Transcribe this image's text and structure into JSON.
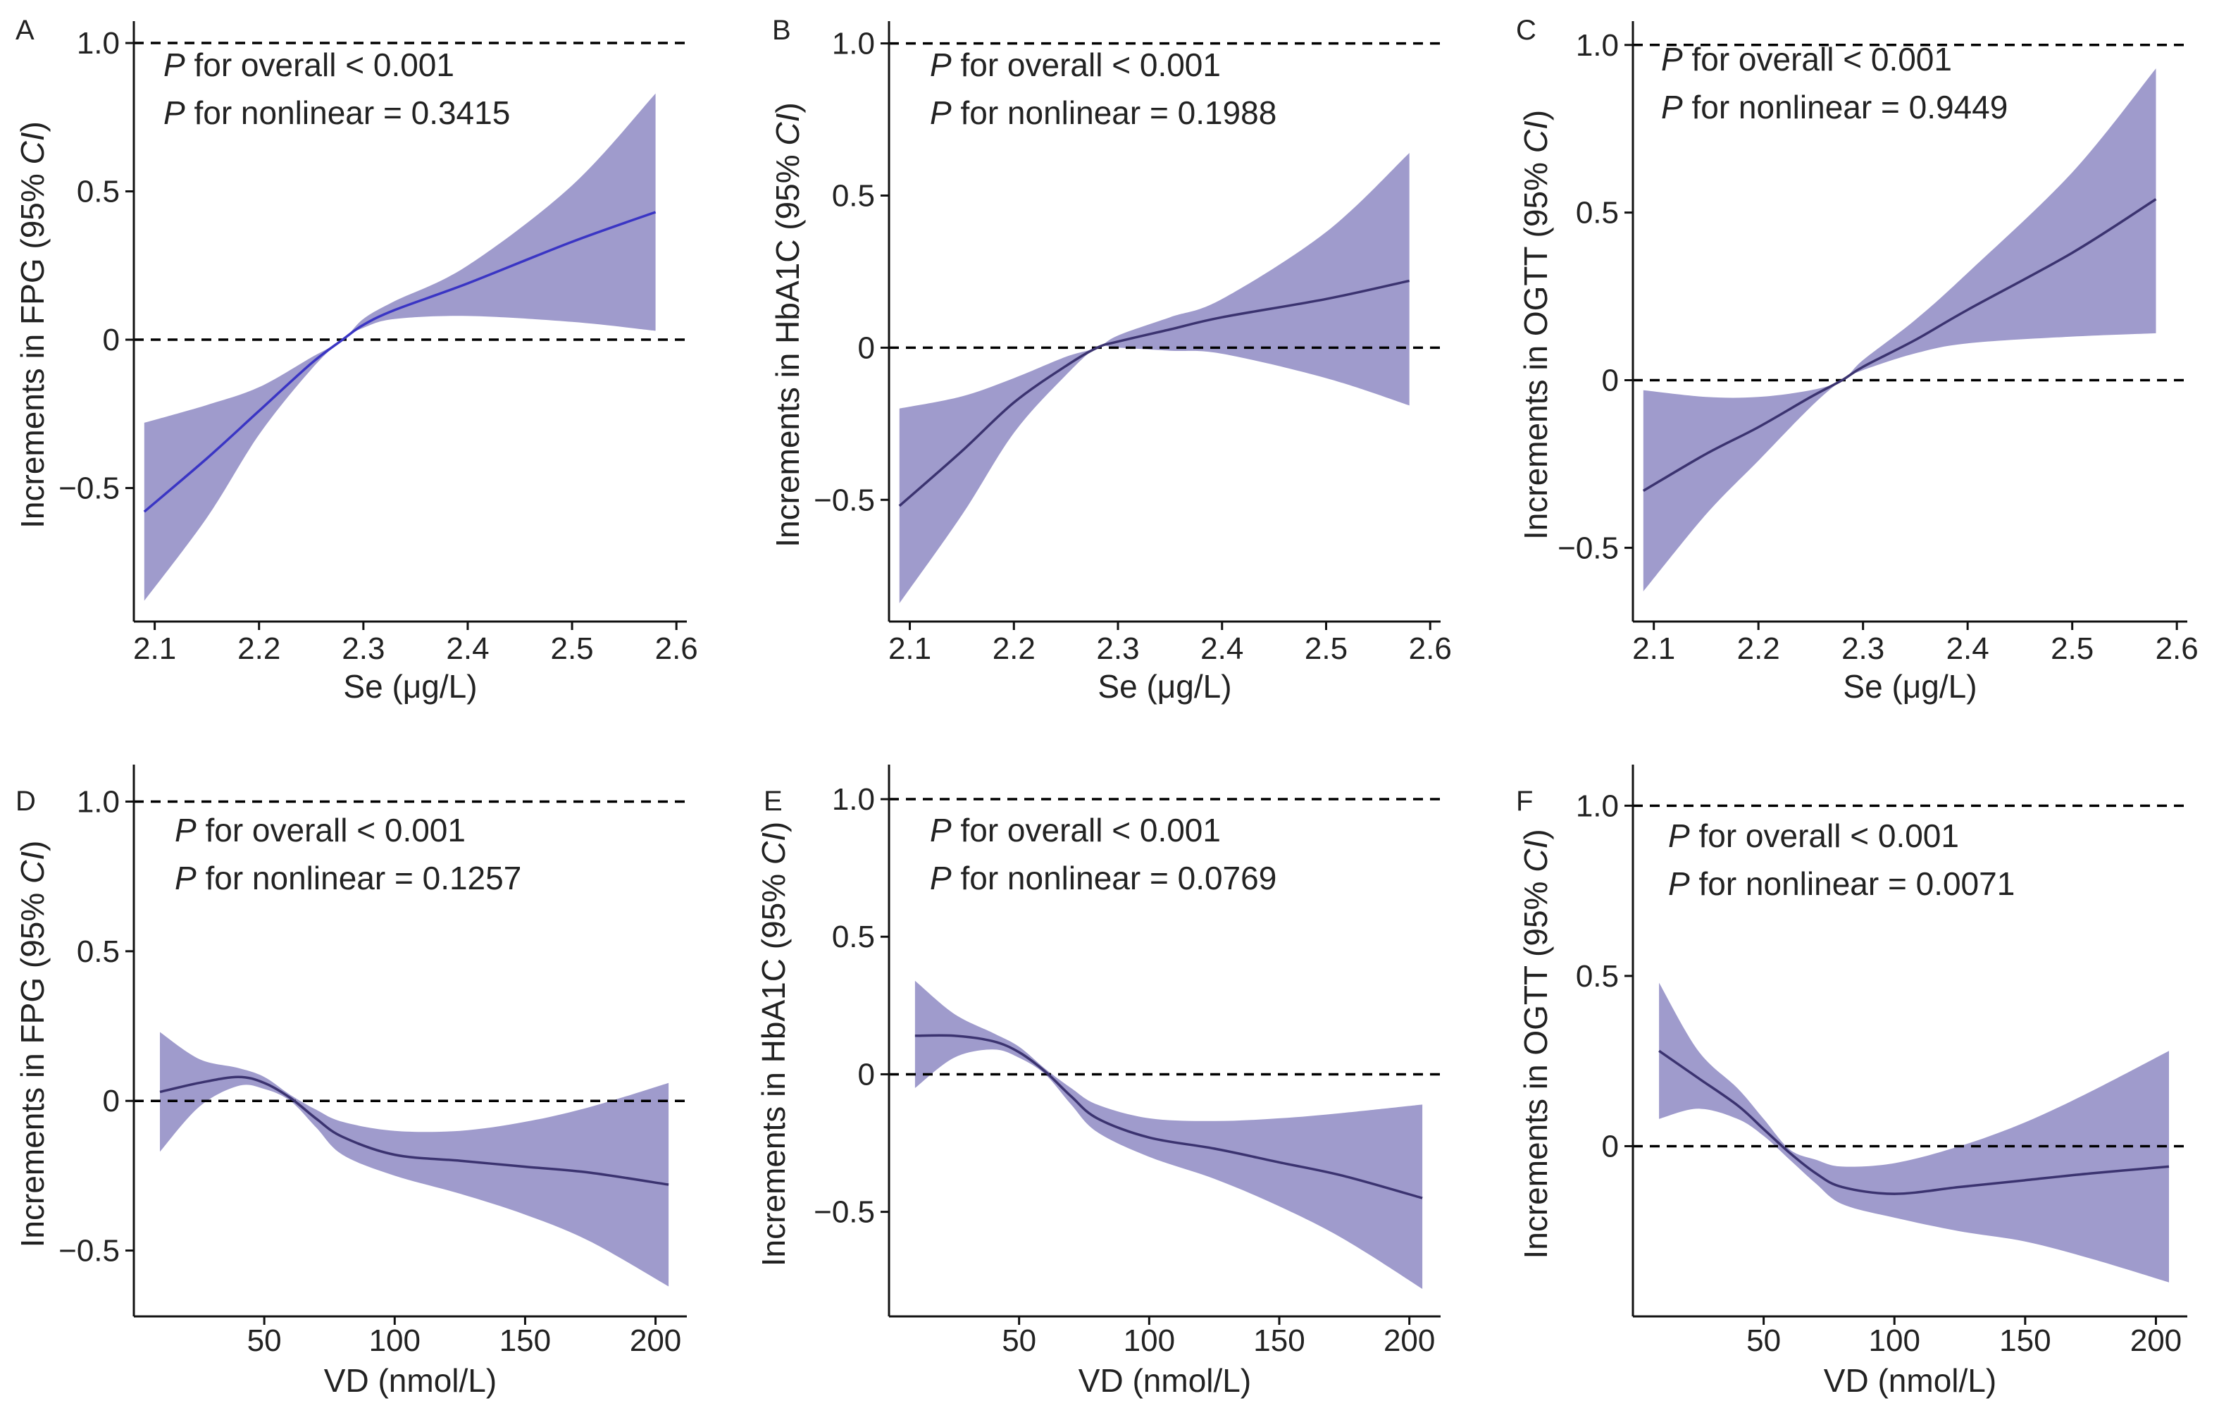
{
  "colors": {
    "band": "#9f9bcc",
    "line_blue": "#3a35c4",
    "line_dark": "#3b3370",
    "axis": "#111111",
    "reference": "#000000"
  },
  "chart_data": [
    {
      "panel": "A",
      "type": "area",
      "xlabel": "Se (μg/L)",
      "ylabel": "Increments in FPG (95% CI)",
      "ylabel_parts": [
        "Increments in FPG (95% ",
        "CI",
        ")"
      ],
      "xlim": [
        2.08,
        2.61
      ],
      "ylim": [
        -0.95,
        1.05
      ],
      "xticks": [
        2.1,
        2.2,
        2.3,
        2.4,
        2.5,
        2.6
      ],
      "xtick_labels": [
        "2.1",
        "2.2",
        "2.3",
        "2.4",
        "2.5",
        "2.6"
      ],
      "yticks": [
        -0.5,
        0,
        0.5,
        1.0
      ],
      "ytick_labels": [
        "−0.5",
        "0",
        "0.5",
        "1.0"
      ],
      "reference_lines": [
        0,
        1.0
      ],
      "annotations": [
        {
          "italic": "P",
          "text": " for overall < 0.001"
        },
        {
          "italic": "P",
          "text": " for nonlinear = 0.3415"
        }
      ],
      "line_color": "blue",
      "series": [
        {
          "role": "estimate",
          "x": [
            2.09,
            2.15,
            2.2,
            2.25,
            2.28,
            2.3,
            2.33,
            2.4,
            2.5,
            2.58
          ],
          "y": [
            -0.58,
            -0.4,
            -0.24,
            -0.08,
            0.0,
            0.05,
            0.1,
            0.19,
            0.33,
            0.43
          ]
        },
        {
          "role": "upper",
          "x": [
            2.09,
            2.15,
            2.2,
            2.25,
            2.28,
            2.3,
            2.33,
            2.4,
            2.5,
            2.58
          ],
          "y": [
            -0.28,
            -0.22,
            -0.16,
            -0.06,
            0.0,
            0.07,
            0.13,
            0.25,
            0.52,
            0.83
          ]
        },
        {
          "role": "lower",
          "x": [
            2.09,
            2.15,
            2.2,
            2.25,
            2.28,
            2.3,
            2.33,
            2.4,
            2.5,
            2.58
          ],
          "y": [
            -0.88,
            -0.6,
            -0.32,
            -0.1,
            0.0,
            0.04,
            0.07,
            0.08,
            0.06,
            0.03
          ]
        }
      ]
    },
    {
      "panel": "B",
      "type": "area",
      "xlabel": "Se (μg/L)",
      "ylabel": "Increments in HbA1C (95% CI)",
      "ylabel_parts": [
        "Increments in HbA1C (95% ",
        "CI",
        ")"
      ],
      "xlim": [
        2.08,
        2.61
      ],
      "ylim": [
        -0.9,
        1.05
      ],
      "xticks": [
        2.1,
        2.2,
        2.3,
        2.4,
        2.5,
        2.6
      ],
      "xtick_labels": [
        "2.1",
        "2.2",
        "2.3",
        "2.4",
        "2.5",
        "2.6"
      ],
      "yticks": [
        -0.5,
        0,
        0.5,
        1.0
      ],
      "ytick_labels": [
        "−0.5",
        "0",
        "0.5",
        "1.0"
      ],
      "reference_lines": [
        0,
        1.0
      ],
      "annotations": [
        {
          "italic": "P",
          "text": " for overall < 0.001"
        },
        {
          "italic": "P",
          "text": " for nonlinear = 0.1988"
        }
      ],
      "line_color": "dark",
      "series": [
        {
          "role": "estimate",
          "x": [
            2.09,
            2.15,
            2.2,
            2.25,
            2.28,
            2.3,
            2.35,
            2.4,
            2.5,
            2.58
          ],
          "y": [
            -0.52,
            -0.34,
            -0.18,
            -0.06,
            0.0,
            0.02,
            0.06,
            0.1,
            0.16,
            0.22
          ]
        },
        {
          "role": "upper",
          "x": [
            2.09,
            2.15,
            2.2,
            2.25,
            2.28,
            2.3,
            2.35,
            2.4,
            2.5,
            2.58
          ],
          "y": [
            -0.2,
            -0.16,
            -0.1,
            -0.03,
            0.0,
            0.04,
            0.1,
            0.16,
            0.38,
            0.64
          ]
        },
        {
          "role": "lower",
          "x": [
            2.09,
            2.15,
            2.2,
            2.25,
            2.28,
            2.3,
            2.35,
            2.4,
            2.5,
            2.58
          ],
          "y": [
            -0.84,
            -0.55,
            -0.28,
            -0.09,
            0.0,
            0.0,
            -0.01,
            -0.02,
            -0.1,
            -0.19
          ]
        }
      ]
    },
    {
      "panel": "C",
      "type": "area",
      "xlabel": "Se (μg/L)",
      "ylabel": "Increments in OGTT (95% CI)",
      "ylabel_parts": [
        "Increments in OGTT (95% ",
        "CI",
        ")"
      ],
      "xlim": [
        2.08,
        2.61
      ],
      "ylim": [
        -0.72,
        1.05
      ],
      "xticks": [
        2.1,
        2.2,
        2.3,
        2.4,
        2.5,
        2.6
      ],
      "xtick_labels": [
        "2.1",
        "2.2",
        "2.3",
        "2.4",
        "2.5",
        "2.6"
      ],
      "yticks": [
        -0.5,
        0,
        0.5,
        1.0
      ],
      "ytick_labels": [
        "−0.5",
        "0",
        "0.5",
        "1.0"
      ],
      "reference_lines": [
        0,
        1.0
      ],
      "annotations": [
        {
          "italic": "P",
          "text": " for overall < 0.001"
        },
        {
          "italic": "P",
          "text": " for nonlinear = 0.9449"
        }
      ],
      "line_color": "dark",
      "series": [
        {
          "role": "estimate",
          "x": [
            2.09,
            2.15,
            2.2,
            2.25,
            2.28,
            2.3,
            2.35,
            2.4,
            2.5,
            2.58
          ],
          "y": [
            -0.33,
            -0.22,
            -0.14,
            -0.05,
            0.0,
            0.04,
            0.12,
            0.21,
            0.38,
            0.54
          ]
        },
        {
          "role": "upper",
          "x": [
            2.09,
            2.15,
            2.2,
            2.25,
            2.28,
            2.3,
            2.35,
            2.4,
            2.5,
            2.58
          ],
          "y": [
            -0.03,
            -0.05,
            -0.05,
            -0.03,
            0.0,
            0.06,
            0.18,
            0.32,
            0.62,
            0.93
          ]
        },
        {
          "role": "lower",
          "x": [
            2.09,
            2.15,
            2.2,
            2.25,
            2.28,
            2.3,
            2.35,
            2.4,
            2.5,
            2.58
          ],
          "y": [
            -0.63,
            -0.4,
            -0.24,
            -0.08,
            0.0,
            0.03,
            0.08,
            0.11,
            0.13,
            0.14
          ]
        }
      ]
    },
    {
      "panel": "D",
      "type": "area",
      "xlabel": "VD (nmol/L)",
      "ylabel": "Increments in FPG (95% CI)",
      "ylabel_parts": [
        "Increments in FPG (95% ",
        "CI",
        ")"
      ],
      "xlim": [
        0,
        212
      ],
      "ylim": [
        -0.72,
        1.1
      ],
      "xticks": [
        50,
        100,
        150,
        200
      ],
      "xtick_labels": [
        "50",
        "100",
        "150",
        "200"
      ],
      "yticks": [
        -0.5,
        0,
        0.5,
        1.0
      ],
      "ytick_labels": [
        "−0.5",
        "0",
        "0.5",
        "1.0"
      ],
      "reference_lines": [
        0,
        1.0
      ],
      "annotations": [
        {
          "italic": "P",
          "text": " for overall < 0.001"
        },
        {
          "italic": "P",
          "text": " for nonlinear = 0.1257"
        }
      ],
      "line_color": "dark",
      "series": [
        {
          "role": "estimate",
          "x": [
            10,
            25,
            40,
            50,
            60,
            70,
            80,
            100,
            125,
            150,
            175,
            205
          ],
          "y": [
            0.03,
            0.06,
            0.08,
            0.06,
            0.01,
            -0.06,
            -0.12,
            -0.18,
            -0.2,
            -0.22,
            -0.24,
            -0.28
          ]
        },
        {
          "role": "upper",
          "x": [
            10,
            25,
            40,
            50,
            60,
            70,
            80,
            100,
            125,
            150,
            175,
            205
          ],
          "y": [
            0.23,
            0.14,
            0.11,
            0.08,
            0.02,
            -0.03,
            -0.07,
            -0.1,
            -0.1,
            -0.07,
            -0.02,
            0.06
          ]
        },
        {
          "role": "lower",
          "x": [
            10,
            25,
            40,
            50,
            60,
            70,
            80,
            100,
            125,
            150,
            175,
            205
          ],
          "y": [
            -0.17,
            -0.02,
            0.05,
            0.04,
            0.0,
            -0.09,
            -0.18,
            -0.25,
            -0.31,
            -0.38,
            -0.47,
            -0.62
          ]
        }
      ]
    },
    {
      "panel": "E",
      "type": "area",
      "xlabel": "VD (nmol/L)",
      "ylabel": "Increments in HbA1C (95% CI)",
      "ylabel_parts": [
        "Increments in HbA1C (95% ",
        "CI",
        ")"
      ],
      "xlim": [
        0,
        212
      ],
      "ylim": [
        -0.88,
        1.1
      ],
      "xticks": [
        50,
        100,
        150,
        200
      ],
      "xtick_labels": [
        "50",
        "100",
        "150",
        "200"
      ],
      "yticks": [
        -0.5,
        0,
        0.5,
        1.0
      ],
      "ytick_labels": [
        "−0.5",
        "0",
        "0.5",
        "1.0"
      ],
      "reference_lines": [
        0,
        1.0
      ],
      "annotations": [
        {
          "italic": "P",
          "text": " for overall < 0.001"
        },
        {
          "italic": "P",
          "text": " for nonlinear = 0.0769"
        }
      ],
      "line_color": "dark",
      "series": [
        {
          "role": "estimate",
          "x": [
            10,
            25,
            40,
            50,
            60,
            70,
            80,
            100,
            125,
            150,
            175,
            205
          ],
          "y": [
            0.14,
            0.14,
            0.12,
            0.08,
            0.01,
            -0.08,
            -0.16,
            -0.23,
            -0.27,
            -0.32,
            -0.37,
            -0.45
          ]
        },
        {
          "role": "upper",
          "x": [
            10,
            25,
            40,
            50,
            60,
            70,
            80,
            100,
            125,
            150,
            175,
            205
          ],
          "y": [
            0.34,
            0.22,
            0.15,
            0.1,
            0.02,
            -0.05,
            -0.11,
            -0.16,
            -0.17,
            -0.16,
            -0.14,
            -0.11
          ]
        },
        {
          "role": "lower",
          "x": [
            10,
            25,
            40,
            50,
            60,
            70,
            80,
            100,
            125,
            150,
            175,
            205
          ],
          "y": [
            -0.05,
            0.06,
            0.09,
            0.06,
            0.0,
            -0.11,
            -0.21,
            -0.3,
            -0.38,
            -0.48,
            -0.6,
            -0.78
          ]
        }
      ]
    },
    {
      "panel": "F",
      "type": "area",
      "xlabel": "VD (nmol/L)",
      "ylabel": "Increments in OGTT (95% CI)",
      "ylabel_parts": [
        "Increments in OGTT (95% ",
        "CI",
        ")"
      ],
      "xlim": [
        0,
        212
      ],
      "ylim": [
        -0.5,
        1.1
      ],
      "xticks": [
        50,
        100,
        150,
        200
      ],
      "xtick_labels": [
        "50",
        "100",
        "150",
        "200"
      ],
      "yticks": [
        0,
        0.5,
        1.0
      ],
      "ytick_labels": [
        "0",
        "0.5",
        "1.0"
      ],
      "reference_lines": [
        0,
        1.0
      ],
      "annotations": [
        {
          "italic": "P",
          "text": " for overall < 0.001"
        },
        {
          "italic": "P",
          "text": " for nonlinear = 0.0071"
        }
      ],
      "line_color": "dark",
      "series": [
        {
          "role": "estimate",
          "x": [
            10,
            25,
            40,
            50,
            60,
            70,
            80,
            100,
            125,
            150,
            175,
            205
          ],
          "y": [
            0.28,
            0.2,
            0.12,
            0.05,
            -0.02,
            -0.08,
            -0.12,
            -0.14,
            -0.12,
            -0.1,
            -0.08,
            -0.06
          ]
        },
        {
          "role": "upper",
          "x": [
            10,
            25,
            40,
            50,
            60,
            70,
            80,
            100,
            125,
            150,
            175,
            205
          ],
          "y": [
            0.48,
            0.28,
            0.17,
            0.08,
            -0.01,
            -0.04,
            -0.06,
            -0.05,
            0.0,
            0.07,
            0.16,
            0.28
          ]
        },
        {
          "role": "lower",
          "x": [
            10,
            25,
            40,
            50,
            60,
            70,
            80,
            100,
            125,
            150,
            175,
            205
          ],
          "y": [
            0.08,
            0.11,
            0.08,
            0.03,
            -0.04,
            -0.11,
            -0.17,
            -0.21,
            -0.25,
            -0.28,
            -0.33,
            -0.4
          ]
        }
      ]
    }
  ]
}
